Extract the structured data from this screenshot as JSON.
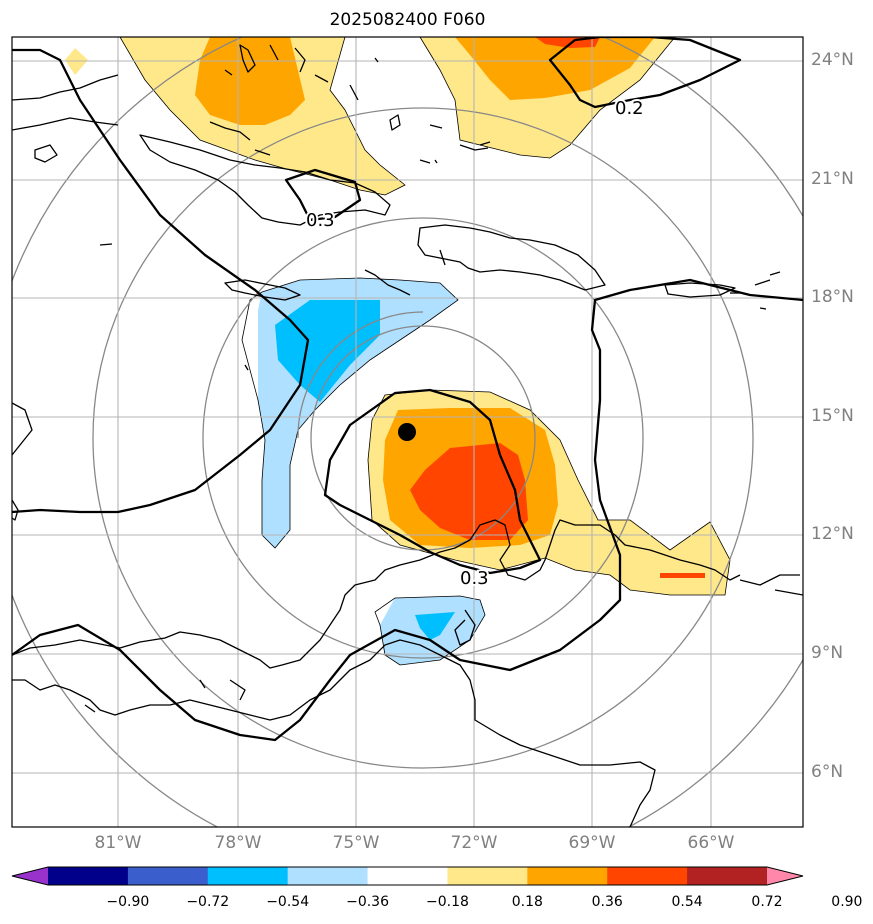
{
  "title": "2025082400 F060",
  "latitude_labels": [
    "24°N",
    "21°N",
    "18°N",
    "15°N",
    "12°N",
    "9°N",
    "6°N"
  ],
  "longitude_labels": [
    "81°W",
    "78°W",
    "75°W",
    "72°W",
    "69°W",
    "66°W"
  ],
  "contour_labels": [
    "0.2",
    "0.3",
    "0.3"
  ],
  "colorbar": {
    "tick_labels": [
      "−0.90",
      "−0.72",
      "−0.54",
      "−0.36",
      "−0.18",
      "0.18",
      "0.36",
      "0.54",
      "0.72",
      "0.90"
    ],
    "colors": [
      "#9932cc",
      "#00008b",
      "#3a5fcd",
      "#00bfff",
      "#b0e0ff",
      "#ffffff",
      "#ffe88a",
      "#ffa500",
      "#ff4500",
      "#b22222",
      "#ff88aa"
    ]
  },
  "fill_colors": {
    "light_blue": "#b0e0ff",
    "blue": "#00bfff",
    "yellow": "#ffe88a",
    "orange": "#ffa500",
    "red": "#ff4500",
    "dark_red": "#dd2222"
  },
  "marker": "storm-center-dot"
}
